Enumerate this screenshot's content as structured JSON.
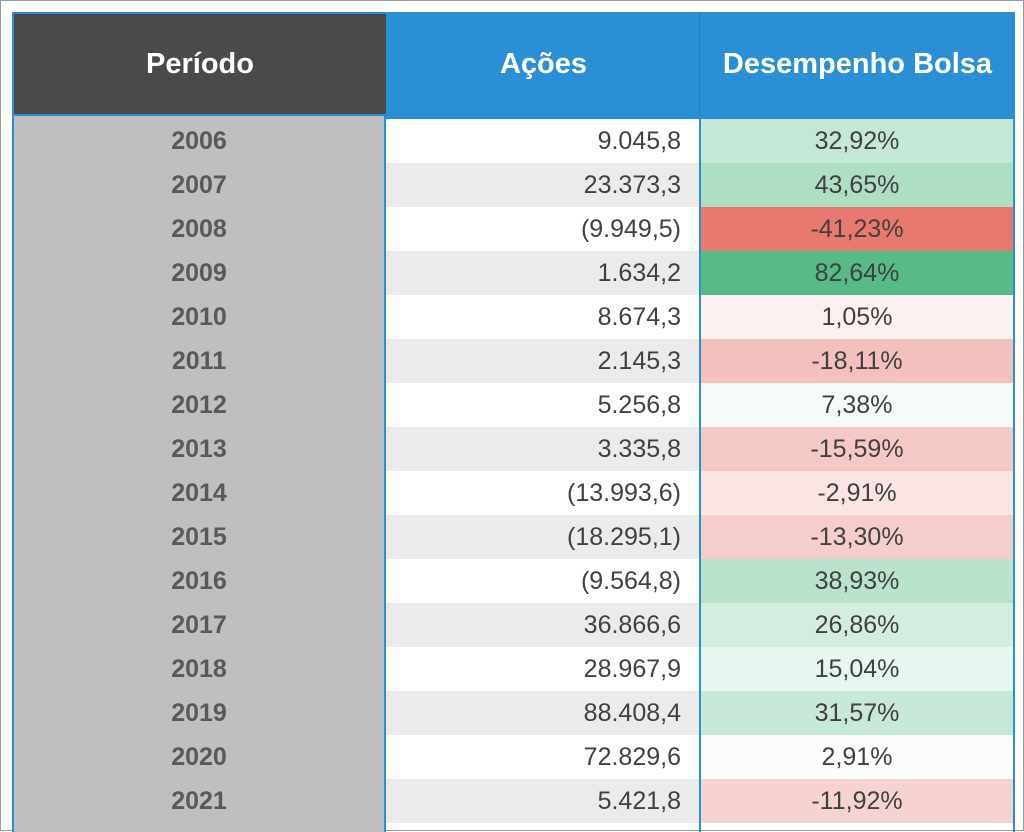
{
  "table": {
    "headers": {
      "periodo": "Período",
      "acoes": "Ações",
      "desempenho": "Desempenho Bolsa"
    },
    "rows": [
      {
        "year": "2006",
        "acoes": "9.045,8",
        "desempenho": "32,92%",
        "color": "#c5e8d6"
      },
      {
        "year": "2007",
        "acoes": "23.373,3",
        "desempenho": "43,65%",
        "color": "#aedfc4"
      },
      {
        "year": "2008",
        "acoes": "(9.949,5)",
        "desempenho": "-41,23%",
        "color": "#e8796f"
      },
      {
        "year": "2009",
        "acoes": "1.634,2",
        "desempenho": "82,64%",
        "color": "#57bb86"
      },
      {
        "year": "2010",
        "acoes": "8.674,3",
        "desempenho": "1,05%",
        "color": "#fcf1f1"
      },
      {
        "year": "2011",
        "acoes": "2.145,3",
        "desempenho": "-18,11%",
        "color": "#f3c0bd"
      },
      {
        "year": "2012",
        "acoes": "5.256,8",
        "desempenho": "7,38%",
        "color": "#f6fbf8"
      },
      {
        "year": "2013",
        "acoes": "3.335,8",
        "desempenho": "-15,59%",
        "color": "#f4c8c5"
      },
      {
        "year": "2014",
        "acoes": "(13.993,6)",
        "desempenho": "-2,91%",
        "color": "#fae5e4"
      },
      {
        "year": "2015",
        "acoes": "(18.295,1)",
        "desempenho": "-13,30%",
        "color": "#f5cecb"
      },
      {
        "year": "2016",
        "acoes": "(9.564,8)",
        "desempenho": "38,93%",
        "color": "#b9e3cc"
      },
      {
        "year": "2017",
        "acoes": "36.866,6",
        "desempenho": "26,86%",
        "color": "#d3eedf"
      },
      {
        "year": "2018",
        "acoes": "28.967,9",
        "desempenho": "15,04%",
        "color": "#e7f6ee"
      },
      {
        "year": "2019",
        "acoes": "88.408,4",
        "desempenho": "31,57%",
        "color": "#c8e9d7"
      },
      {
        "year": "2020",
        "acoes": "72.829,6",
        "desempenho": "2,91%",
        "color": "#fcfcfc"
      },
      {
        "year": "2021",
        "acoes": "5.421,8",
        "desempenho": "-11,92%",
        "color": "#f6d3d0"
      }
    ]
  },
  "colors": {
    "header_dark": "#4a4a4a",
    "header_blue": "#2a8fd4",
    "periodo_column": "#bfbfbf",
    "alt_row": "#ebebeb"
  }
}
